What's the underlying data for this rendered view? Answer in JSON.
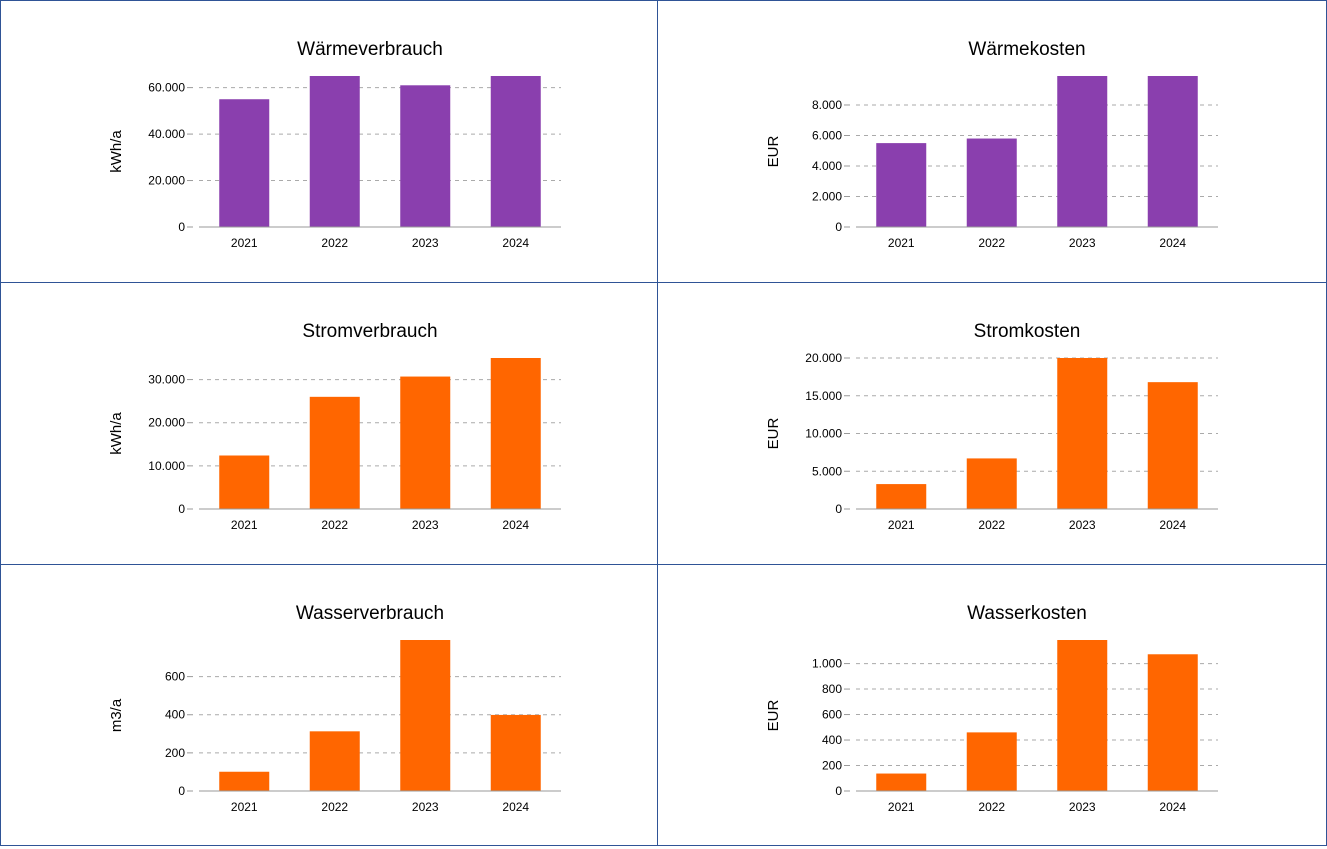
{
  "chart_data": [
    {
      "type": "bar",
      "title": "Wärmeverbrauch",
      "y_label": "kWh/a",
      "color": "#8a3fae",
      "categories": [
        "2021",
        "2022",
        "2023",
        "2024"
      ],
      "values": [
        55000,
        65000,
        61000,
        65000
      ],
      "ylim": [
        0,
        65000
      ],
      "yticks": [
        0,
        {
          "value": 20000,
          "label": "20.000"
        },
        {
          "value": 40000,
          "label": "40.000"
        },
        {
          "value": 60000,
          "label": "60.000"
        }
      ],
      "grid": true
    },
    {
      "type": "bar",
      "title": "Wärmekosten",
      "y_label": "EUR",
      "color": "#8a3fae",
      "categories": [
        "2021",
        "2022",
        "2023",
        "2024"
      ],
      "values": [
        5500,
        5800,
        9900,
        9900
      ],
      "ylim": [
        0,
        9900
      ],
      "yticks": [
        0,
        {
          "value": 2000,
          "label": "2.000"
        },
        {
          "value": 4000,
          "label": "4.000"
        },
        {
          "value": 6000,
          "label": "6.000"
        },
        {
          "value": 8000,
          "label": "8.000"
        }
      ],
      "grid": true
    },
    {
      "type": "bar",
      "title": "Stromverbrauch",
      "y_label": "kWh/a",
      "color": "#ff6600",
      "categories": [
        "2021",
        "2022",
        "2023",
        "2024"
      ],
      "values": [
        12400,
        26000,
        30700,
        35000
      ],
      "ylim": [
        0,
        35000
      ],
      "yticks": [
        0,
        {
          "value": 10000,
          "label": "10.000"
        },
        {
          "value": 20000,
          "label": "20.000"
        },
        {
          "value": 30000,
          "label": "30.000"
        }
      ],
      "grid": true
    },
    {
      "type": "bar",
      "title": "Stromkosten",
      "y_label": "EUR",
      "color": "#ff6600",
      "categories": [
        "2021",
        "2022",
        "2023",
        "2024"
      ],
      "values": [
        3300,
        6700,
        20000,
        16800
      ],
      "ylim": [
        0,
        20000
      ],
      "yticks": [
        0,
        {
          "value": 5000,
          "label": "5.000"
        },
        {
          "value": 10000,
          "label": "10.000"
        },
        {
          "value": 15000,
          "label": "15.000"
        },
        {
          "value": 20000,
          "label": "20.000"
        }
      ],
      "grid": true
    },
    {
      "type": "bar",
      "title": "Wasserverbrauch",
      "y_label": "m3/a",
      "color": "#ff6600",
      "categories": [
        "2021",
        "2022",
        "2023",
        "2024"
      ],
      "values": [
        101,
        313,
        792,
        399
      ],
      "ylim": [
        0,
        792
      ],
      "yticks": [
        0,
        200,
        400,
        600
      ],
      "grid": true
    },
    {
      "type": "bar",
      "title": "Wasserkosten",
      "y_label": "EUR",
      "color": "#ff6600",
      "categories": [
        "2021",
        "2022",
        "2023",
        "2024"
      ],
      "values": [
        137,
        460,
        1185,
        1073
      ],
      "ylim": [
        0,
        1185
      ],
      "yticks": [
        0,
        200,
        400,
        600,
        800,
        {
          "value": 1000,
          "label": "1.000"
        }
      ],
      "grid": true
    }
  ]
}
